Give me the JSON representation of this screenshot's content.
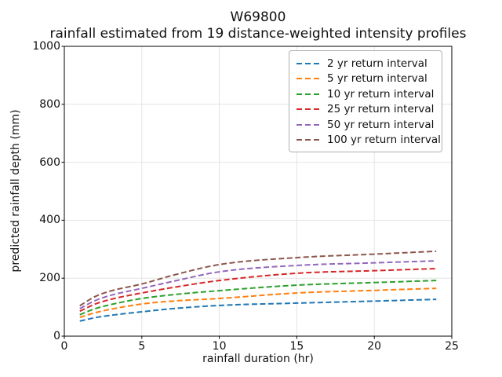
{
  "chart_data": {
    "type": "line",
    "title": "W69800",
    "subtitle": "rainfall estimated from 19 distance-weighted intensity profiles",
    "xlabel": "rainfall duration (hr)",
    "ylabel": "predicted rainfall depth (mm)",
    "xlim": [
      0,
      25
    ],
    "ylim": [
      0,
      1000
    ],
    "x_ticks": [
      0,
      5,
      10,
      15,
      20,
      25
    ],
    "y_ticks": [
      0,
      200,
      400,
      600,
      800,
      1000
    ],
    "grid": true,
    "grid_color": "#e4e4e4",
    "frame_color": "#000000",
    "line_style": "dashed",
    "legend_position": "upper right",
    "x": [
      1,
      2,
      3,
      5,
      7,
      10,
      15,
      20,
      24
    ],
    "series": [
      {
        "name": "2 yr return interval",
        "color": "#1f77b4",
        "values": [
          52,
          64,
          72,
          84,
          95,
          106,
          114,
          121,
          127
        ]
      },
      {
        "name": "5 yr return interval",
        "color": "#ff7f0e",
        "values": [
          65,
          81,
          93,
          111,
          121,
          130,
          149,
          158,
          165
        ]
      },
      {
        "name": "10 yr return interval",
        "color": "#2ca02c",
        "values": [
          74,
          95,
          109,
          130,
          143,
          157,
          176,
          185,
          192
        ]
      },
      {
        "name": "25 yr return interval",
        "color": "#d62728",
        "values": [
          86,
          111,
          127,
          149,
          168,
          192,
          217,
          226,
          233
        ]
      },
      {
        "name": "50 yr return interval",
        "color": "#9467bd",
        "values": [
          95,
          123,
          141,
          165,
          189,
          222,
          244,
          253,
          260
        ]
      },
      {
        "name": "100 yr return interval",
        "color": "#8c564b",
        "values": [
          105,
          137,
          156,
          180,
          210,
          247,
          271,
          283,
          293
        ]
      }
    ]
  }
}
